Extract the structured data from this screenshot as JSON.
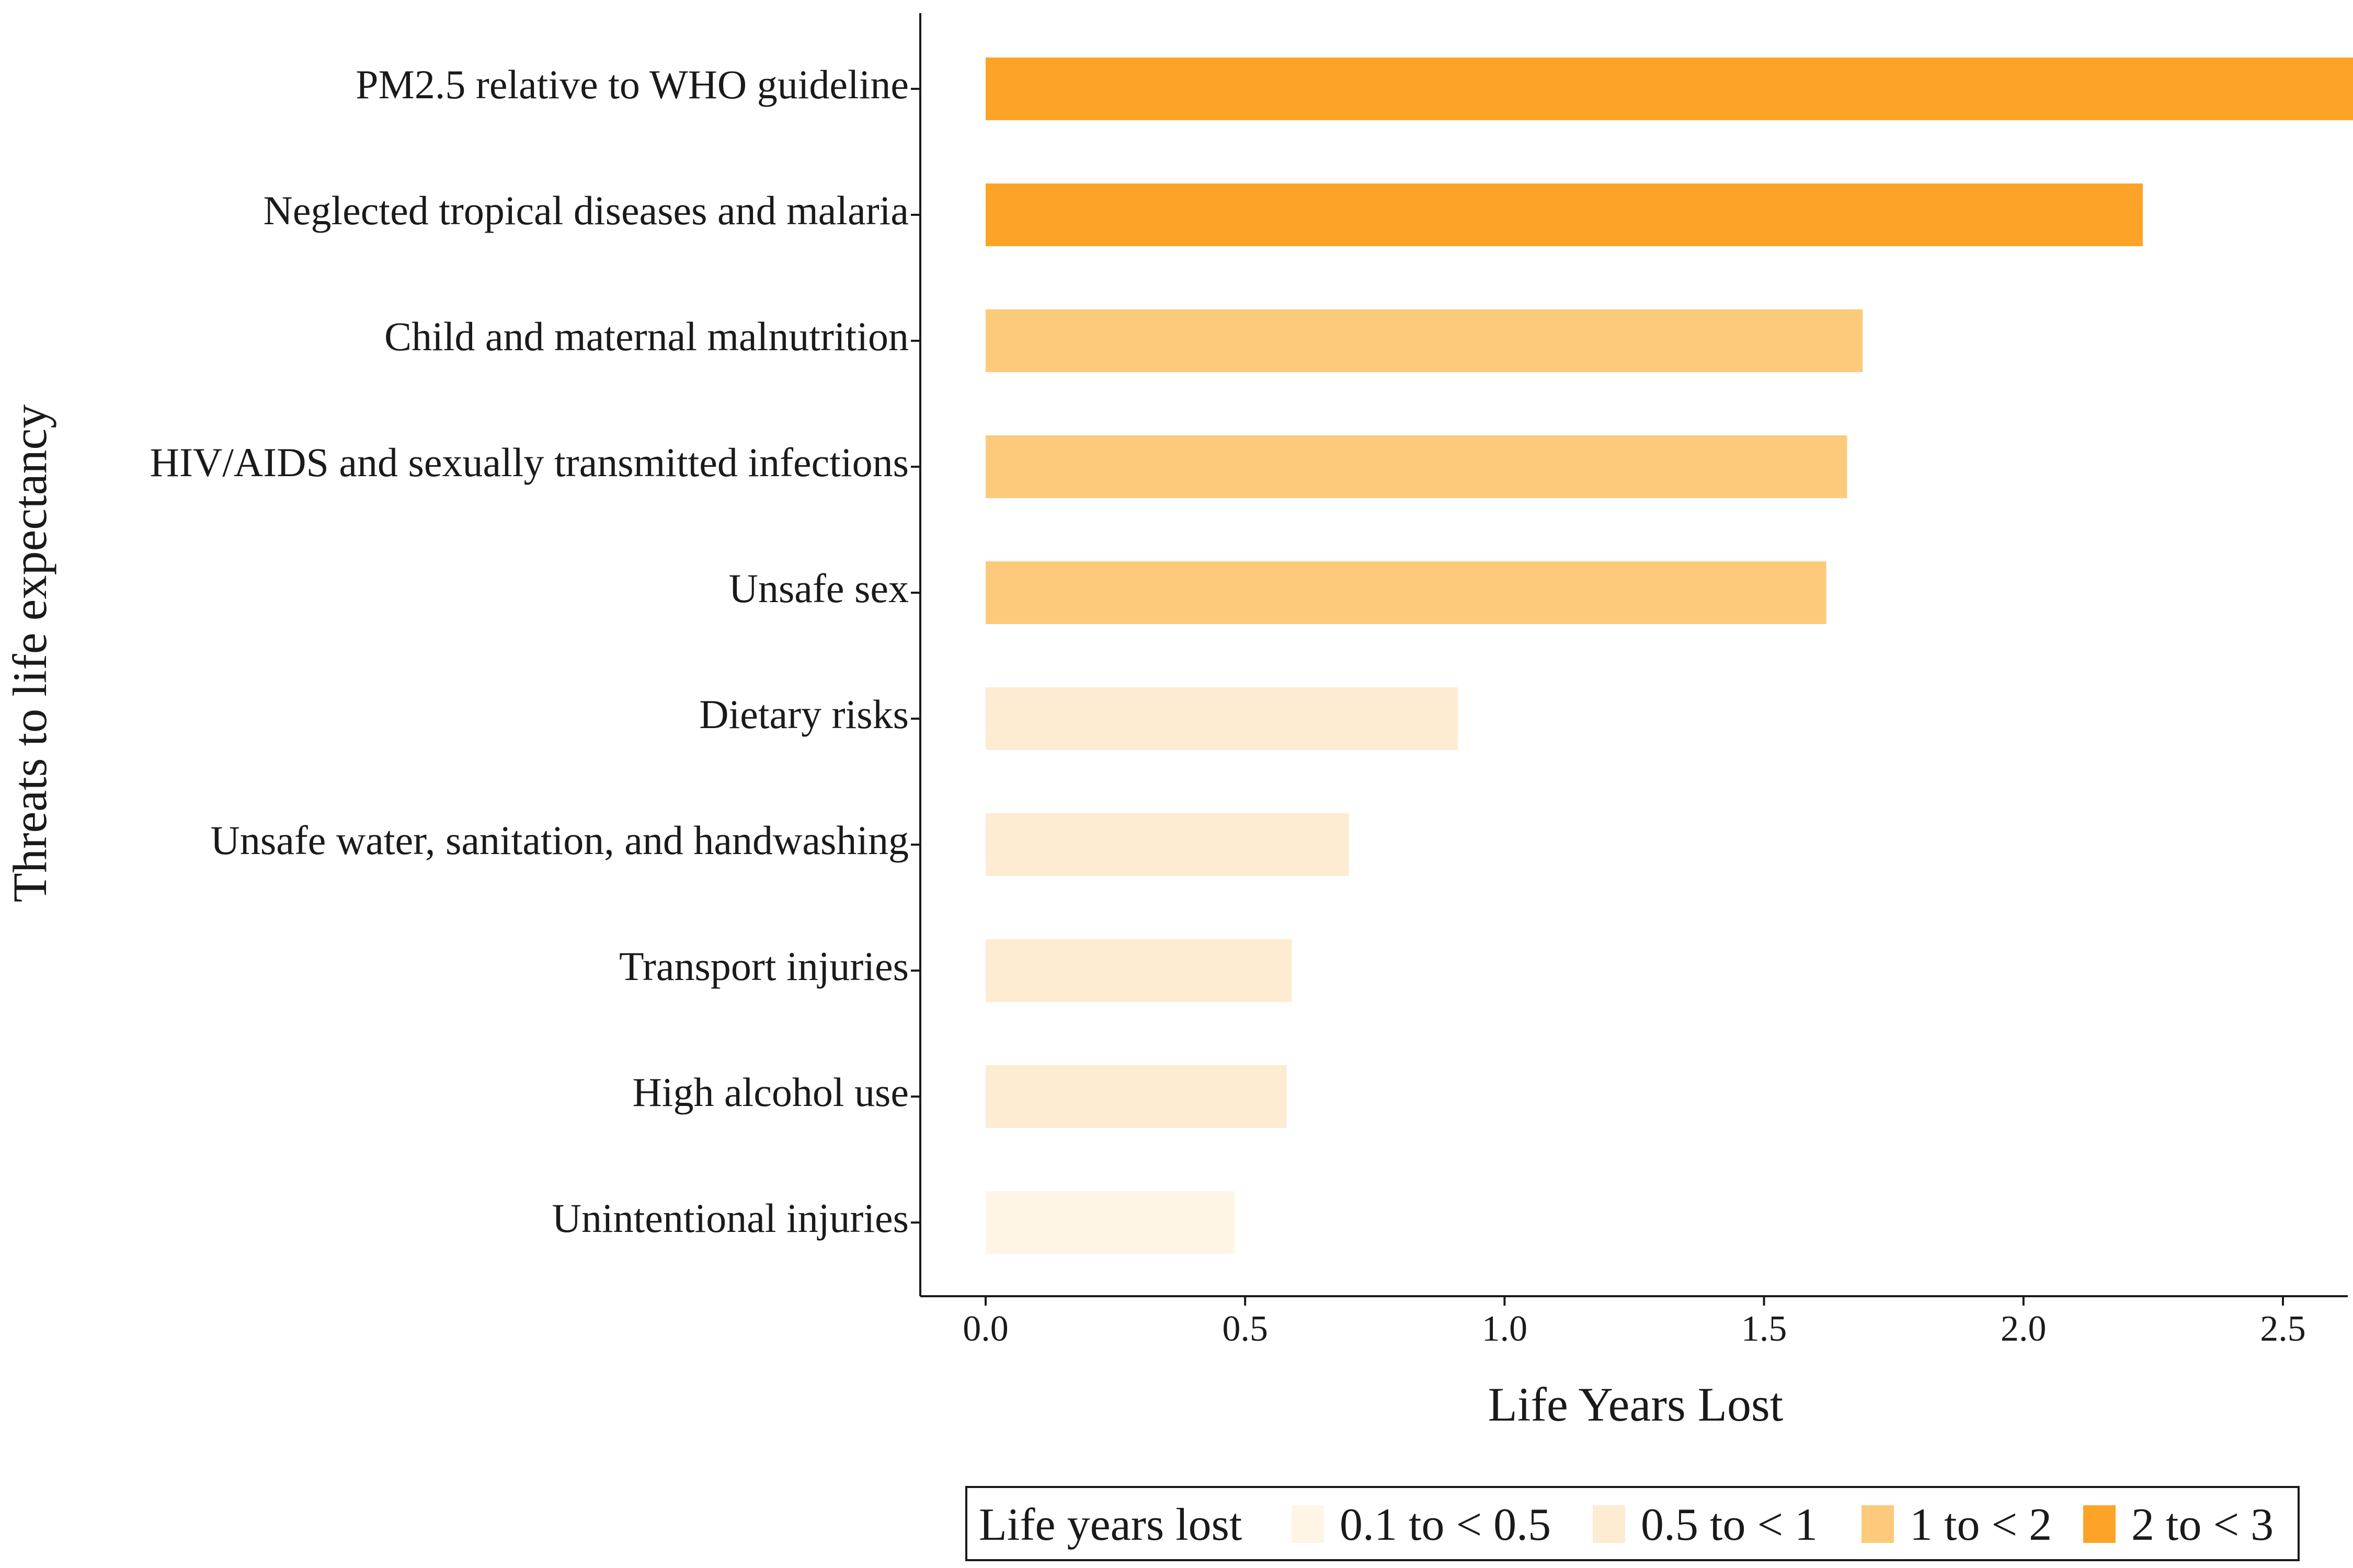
{
  "chart_data": {
    "type": "bar",
    "orientation": "horizontal",
    "xlabel": "Life Years Lost",
    "ylabel": "Threats to life expectancy",
    "xlim": [
      0,
      2.8
    ],
    "xticks": [
      "0.0",
      "0.5",
      "1.0",
      "1.5",
      "2.0",
      "2.5"
    ],
    "grid": false,
    "categories": [
      "PM2.5 relative to WHO guideline",
      "Neglected tropical diseases and malaria",
      "Child and maternal malnutrition",
      "HIV/AIDS and sexually transmitted infections",
      "Unsafe sex",
      "Dietary risks",
      "Unsafe water, sanitation, and handwashing",
      "Transport injuries",
      "High alcohol use",
      "Unintentional injuries"
    ],
    "values": [
      2.69,
      2.23,
      1.69,
      1.66,
      1.62,
      0.91,
      0.7,
      0.59,
      0.58,
      0.48
    ],
    "groups": [
      "2 to < 3",
      "2 to < 3",
      "1 to < 2",
      "1 to < 2",
      "1 to < 2",
      "0.5 to < 1",
      "0.5 to < 1",
      "0.5 to < 1",
      "0.5 to < 1",
      "0.1 to < 0.5"
    ],
    "legend": {
      "title": "Life years lost",
      "position": "bottom",
      "entries": [
        {
          "label": "0.1 to < 0.5",
          "color": "#fef5e7"
        },
        {
          "label": "0.5 to < 1",
          "color": "#fdebd2"
        },
        {
          "label": "1 to < 2",
          "color": "#fdc97b"
        },
        {
          "label": "2 to < 3",
          "color": "#fda428"
        }
      ]
    }
  }
}
